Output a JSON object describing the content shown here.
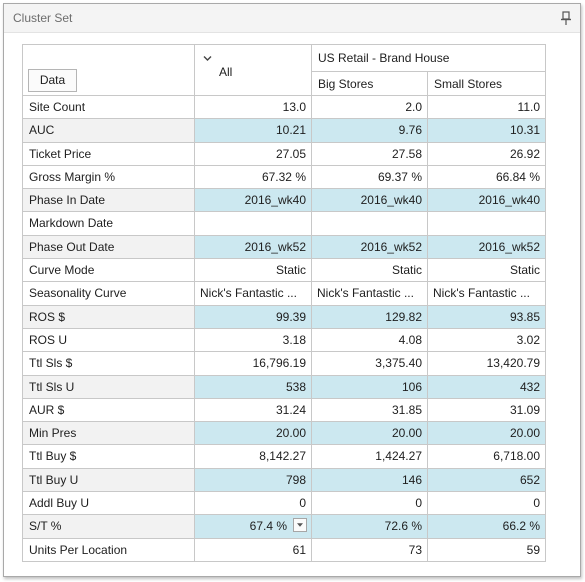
{
  "window": {
    "title": "Cluster Set"
  },
  "header": {
    "data_button": "Data",
    "all_label": "All",
    "group_label": "US Retail - Brand House",
    "columns": [
      "Big Stores",
      "Small Stores"
    ]
  },
  "rows": [
    {
      "label": "Site Count",
      "values": [
        "13.0",
        "2.0",
        "11.0"
      ]
    },
    {
      "label": "AUC",
      "values": [
        "10.21",
        "9.76",
        "10.31"
      ]
    },
    {
      "label": "Ticket Price",
      "values": [
        "27.05",
        "27.58",
        "26.92"
      ]
    },
    {
      "label": "Gross Margin %",
      "values": [
        "67.32 %",
        "69.37 %",
        "66.84 %"
      ]
    },
    {
      "label": "Phase In Date",
      "values": [
        "2016_wk40",
        "2016_wk40",
        "2016_wk40"
      ]
    },
    {
      "label": "Markdown Date",
      "values": [
        "",
        "",
        ""
      ]
    },
    {
      "label": "Phase Out Date",
      "values": [
        "2016_wk52",
        "2016_wk52",
        "2016_wk52"
      ]
    },
    {
      "label": "Curve Mode",
      "values": [
        "Static",
        "Static",
        "Static"
      ]
    },
    {
      "label": "Seasonality Curve",
      "values": [
        "Nick's Fantastic ...",
        "Nick's Fantastic ...",
        "Nick's Fantastic ..."
      ]
    },
    {
      "label": "ROS $",
      "values": [
        "99.39",
        "129.82",
        "93.85"
      ]
    },
    {
      "label": "ROS U",
      "values": [
        "3.18",
        "4.08",
        "3.02"
      ]
    },
    {
      "label": "Ttl Sls $",
      "values": [
        "16,796.19",
        "3,375.40",
        "13,420.79"
      ]
    },
    {
      "label": "Ttl Sls U",
      "values": [
        "538",
        "106",
        "432"
      ]
    },
    {
      "label": "AUR $",
      "values": [
        "31.24",
        "31.85",
        "31.09"
      ]
    },
    {
      "label": "Min Pres",
      "values": [
        "20.00",
        "20.00",
        "20.00"
      ]
    },
    {
      "label": "Ttl Buy $",
      "values": [
        "8,142.27",
        "1,424.27",
        "6,718.00"
      ]
    },
    {
      "label": "Ttl Buy U",
      "values": [
        "798",
        "146",
        "652"
      ]
    },
    {
      "label": "Addl Buy U",
      "values": [
        "0",
        "0",
        "0"
      ]
    },
    {
      "label": "S/T %",
      "values": [
        "67.4 %",
        "72.6 %",
        "66.2 %"
      ]
    },
    {
      "label": "Units Per Location",
      "values": [
        "61",
        "73",
        "59"
      ]
    }
  ],
  "icons": {
    "pin": "pin-icon",
    "expand": "chevron-down-icon",
    "dropdown": "dropdown-arrow-icon"
  },
  "colors": {
    "alt_row": "#cce8f0",
    "grid_line": "#c8c8c8",
    "title_text": "#6d6d6d"
  }
}
